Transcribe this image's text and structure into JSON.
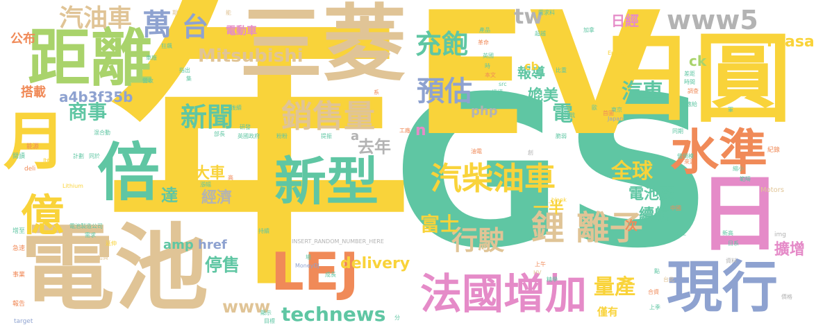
{
  "palette": {
    "yellow": "#f9d33a",
    "teal": "#5fc6a3",
    "tan": "#e0c496",
    "blue": "#8ea2d0",
    "orange": "#f08a58",
    "pink": "#e58bc8",
    "green": "#a9d36b",
    "grey": "#b3b3b3"
  },
  "words": [
    {
      "text": "年",
      "color": "yellow"
    },
    {
      "text": "GS",
      "color": "teal"
    },
    {
      "text": "EV",
      "color": "yellow"
    },
    {
      "text": "電池",
      "color": "tan"
    },
    {
      "text": "三菱",
      "color": "tan"
    },
    {
      "text": "日圓",
      "color": "yellow"
    },
    {
      "text": "距離",
      "color": "green"
    },
    {
      "text": "月",
      "color": "yellow"
    },
    {
      "text": "倍",
      "color": "teal"
    },
    {
      "text": "新型",
      "color": "teal"
    },
    {
      "text": "LEJ",
      "color": "orange"
    },
    {
      "text": "現行",
      "color": "blue"
    },
    {
      "text": "日",
      "color": "pink"
    },
    {
      "text": "水準",
      "color": "orange"
    },
    {
      "text": "法國增加",
      "color": "pink"
    },
    {
      "text": "億",
      "color": "yellow"
    },
    {
      "text": "汽柴油車",
      "color": "yellow"
    },
    {
      "text": "銷售量",
      "color": "tan"
    },
    {
      "text": "鋰 離子",
      "color": "tan"
    },
    {
      "text": "汽油車",
      "color": "tan"
    },
    {
      "text": "萬",
      "color": "blue"
    },
    {
      "text": "台",
      "color": "blue"
    },
    {
      "text": "www5",
      "color": "grey"
    },
    {
      "text": "Mitsubishi",
      "color": "tan"
    },
    {
      "text": "充飽",
      "color": "teal"
    },
    {
      "text": "預估",
      "color": "blue"
    },
    {
      "text": "新聞",
      "color": "teal"
    },
    {
      "text": "商事",
      "color": "teal"
    },
    {
      "text": "technews",
      "color": "teal"
    },
    {
      "text": "www",
      "color": "tan"
    },
    {
      "text": "行駛",
      "color": "tan"
    },
    {
      "text": "全球",
      "color": "yellow"
    },
    {
      "text": "量產",
      "color": "yellow"
    },
    {
      "text": "汽車",
      "color": "teal"
    },
    {
      "text": "嫓美",
      "color": "teal"
    },
    {
      "text": "報導",
      "color": "teal"
    },
    {
      "text": "日經",
      "color": "pink"
    },
    {
      "text": "Yuasa",
      "color": "yellow"
    },
    {
      "text": "電池廠",
      "color": "teal"
    },
    {
      "text": "續航",
      "color": "teal"
    },
    {
      "text": "擴增",
      "color": "pink"
    },
    {
      "text": "停售",
      "color": "teal"
    },
    {
      "text": "大車",
      "color": "yellow"
    },
    {
      "text": "經濟",
      "color": "grey"
    },
    {
      "text": "delivery",
      "color": "yellow"
    },
    {
      "text": "去年",
      "color": "grey"
    },
    {
      "text": "富士",
      "color": "yellow"
    },
    {
      "text": "一半",
      "color": "yellow"
    },
    {
      "text": "電",
      "color": "teal"
    },
    {
      "text": "達",
      "color": "teal"
    },
    {
      "text": "公布",
      "color": "orange"
    },
    {
      "text": "搭載",
      "color": "orange"
    },
    {
      "text": "a4b3f35b",
      "color": "blue"
    },
    {
      "text": "電動車",
      "color": "pink"
    },
    {
      "text": "tw",
      "color": "grey"
    },
    {
      "text": "cb",
      "color": "yellow"
    },
    {
      "text": "ck",
      "color": "green"
    },
    {
      "text": "php",
      "color": "grey"
    },
    {
      "text": "amp",
      "color": "teal"
    },
    {
      "text": "href",
      "color": "blue"
    },
    {
      "text": "次",
      "color": "orange"
    },
    {
      "text": "僅有",
      "color": "yellow"
    },
    {
      "text": "n",
      "color": "pink"
    },
    {
      "text": "a",
      "color": "grey"
    },
    {
      "text": "INSERT_RANDOM_NUMBER_HERE",
      "color": "grey"
    },
    {
      "text": "MoneyDJ",
      "color": "blue"
    },
    {
      "text": "電池製造公司",
      "color": "teal"
    },
    {
      "text": "Lithium",
      "color": "yellow"
    },
    {
      "text": "Energy",
      "color": "yellow"
    },
    {
      "text": "Motors",
      "color": "tan"
    },
    {
      "text": "Japan",
      "color": "blue"
    },
    {
      "text": "target",
      "color": "blue"
    },
    {
      "text": "img",
      "color": "grey"
    },
    {
      "text": "src",
      "color": "teal"
    },
    {
      "text": "HV",
      "color": "tan"
    },
    {
      "text": "deli",
      "color": "orange"
    },
    {
      "text": "_blank",
      "color": "yellow"
    },
    {
      "text": "英國政府",
      "color": "teal"
    },
    {
      "text": "研發",
      "color": "teal"
    },
    {
      "text": "部長",
      "color": "teal"
    },
    {
      "text": "粉粉",
      "color": "teal"
    },
    {
      "text": "提振",
      "color": "teal"
    },
    {
      "text": "混合動",
      "color": "teal"
    },
    {
      "text": "計劃",
      "color": "teal"
    },
    {
      "text": "同於",
      "color": "teal"
    },
    {
      "text": "能源",
      "color": "orange"
    },
    {
      "text": "閱讀",
      "color": "teal"
    },
    {
      "text": "財報",
      "color": "yellow"
    },
    {
      "text": "增至",
      "color": "teal"
    },
    {
      "text": "急速",
      "color": "orange"
    },
    {
      "text": "事業",
      "color": "orange"
    },
    {
      "text": "報告",
      "color": "orange"
    },
    {
      "text": "需求",
      "color": "teal"
    },
    {
      "text": "延伸",
      "color": "yellow"
    },
    {
      "text": "出資",
      "color": "tan"
    },
    {
      "text": "漲幅",
      "color": "teal"
    },
    {
      "text": "高",
      "color": "orange"
    },
    {
      "text": "後續",
      "color": "teal"
    },
    {
      "text": "持續",
      "color": "teal"
    },
    {
      "text": "成長",
      "color": "teal"
    },
    {
      "text": "場",
      "color": "teal"
    },
    {
      "text": "顯示",
      "color": "teal"
    },
    {
      "text": "目標",
      "color": "teal"
    },
    {
      "text": "分",
      "color": "teal"
    },
    {
      "text": "油電",
      "color": "orange"
    },
    {
      "text": "工廠",
      "color": "orange"
    },
    {
      "text": "創",
      "color": "grey"
    },
    {
      "text": "轉戰",
      "color": "teal"
    },
    {
      "text": "脆弱",
      "color": "teal"
    },
    {
      "text": "東京",
      "color": "teal"
    },
    {
      "text": "上午",
      "color": "orange"
    },
    {
      "text": "上季",
      "color": "teal"
    },
    {
      "text": "台北",
      "color": "tan"
    },
    {
      "text": "精學",
      "color": "teal"
    },
    {
      "text": "點",
      "color": "teal"
    },
    {
      "text": "合資",
      "color": "orange"
    },
    {
      "text": "中國",
      "color": "orange"
    },
    {
      "text": "設立",
      "color": "teal"
    },
    {
      "text": "新高",
      "color": "teal"
    },
    {
      "text": "日系",
      "color": "teal"
    },
    {
      "text": "資料",
      "color": "grey"
    },
    {
      "text": "價格",
      "color": "grey"
    },
    {
      "text": "紀錄",
      "color": "orange"
    },
    {
      "text": "縮小",
      "color": "teal"
    },
    {
      "text": "範疇",
      "color": "teal"
    },
    {
      "text": "來源",
      "color": "orange"
    },
    {
      "text": "同期",
      "color": "teal"
    },
    {
      "text": "營規模",
      "color": "teal"
    },
    {
      "text": "供應給",
      "color": "teal"
    },
    {
      "text": "時間",
      "color": "teal"
    },
    {
      "text": "差距",
      "color": "teal"
    },
    {
      "text": "調查",
      "color": "orange"
    },
    {
      "text": "軍",
      "color": "teal"
    },
    {
      "text": "歐",
      "color": "teal"
    },
    {
      "text": "首圖",
      "color": "orange"
    },
    {
      "text": "期",
      "color": "tan"
    },
    {
      "text": "能",
      "color": "tan"
    },
    {
      "text": "需求料",
      "color": "teal"
    },
    {
      "text": "超越",
      "color": "teal"
    },
    {
      "text": "加拿",
      "color": "teal"
    },
    {
      "text": "產品",
      "color": "teal"
    },
    {
      "text": "革命",
      "color": "orange"
    },
    {
      "text": "英國",
      "color": "teal"
    },
    {
      "text": "時",
      "color": "teal"
    },
    {
      "text": "本文",
      "color": "orange"
    },
    {
      "text": "授權",
      "color": "teal"
    },
    {
      "text": "比重",
      "color": "teal"
    },
    {
      "text": "指出",
      "color": "teal"
    },
    {
      "text": "集",
      "color": "teal"
    },
    {
      "text": "系",
      "color": "orange"
    },
    {
      "text": "營收",
      "color": "teal"
    },
    {
      "text": "車廠",
      "color": "teal"
    },
    {
      "text": "狂飆",
      "color": "teal"
    }
  ]
}
